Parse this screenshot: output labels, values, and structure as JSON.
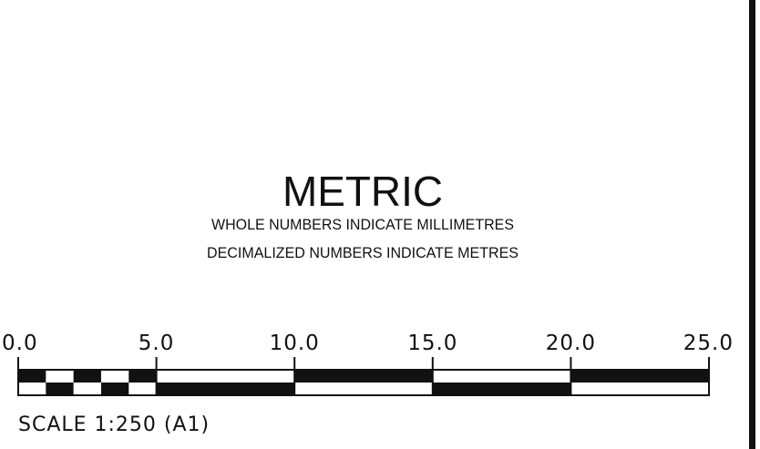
{
  "title": "METRIC",
  "notes": [
    "WHOLE NUMBERS INDICATE MILLIMETRES",
    "DECIMALIZED NUMBERS INDICATE METRES"
  ],
  "scale_bar": {
    "tick_labels": [
      "0.0",
      "5.0",
      "10.0",
      "15.0",
      "20.0",
      "25.0"
    ],
    "start_value": 0,
    "end_value": 25,
    "fine_division_count": 5,
    "fine_range_end": 5,
    "coarse_step": 5
  },
  "scale_note": "SCALE 1:250 (A1)",
  "colors": {
    "ink": "#111111",
    "paper": "#ffffff"
  }
}
